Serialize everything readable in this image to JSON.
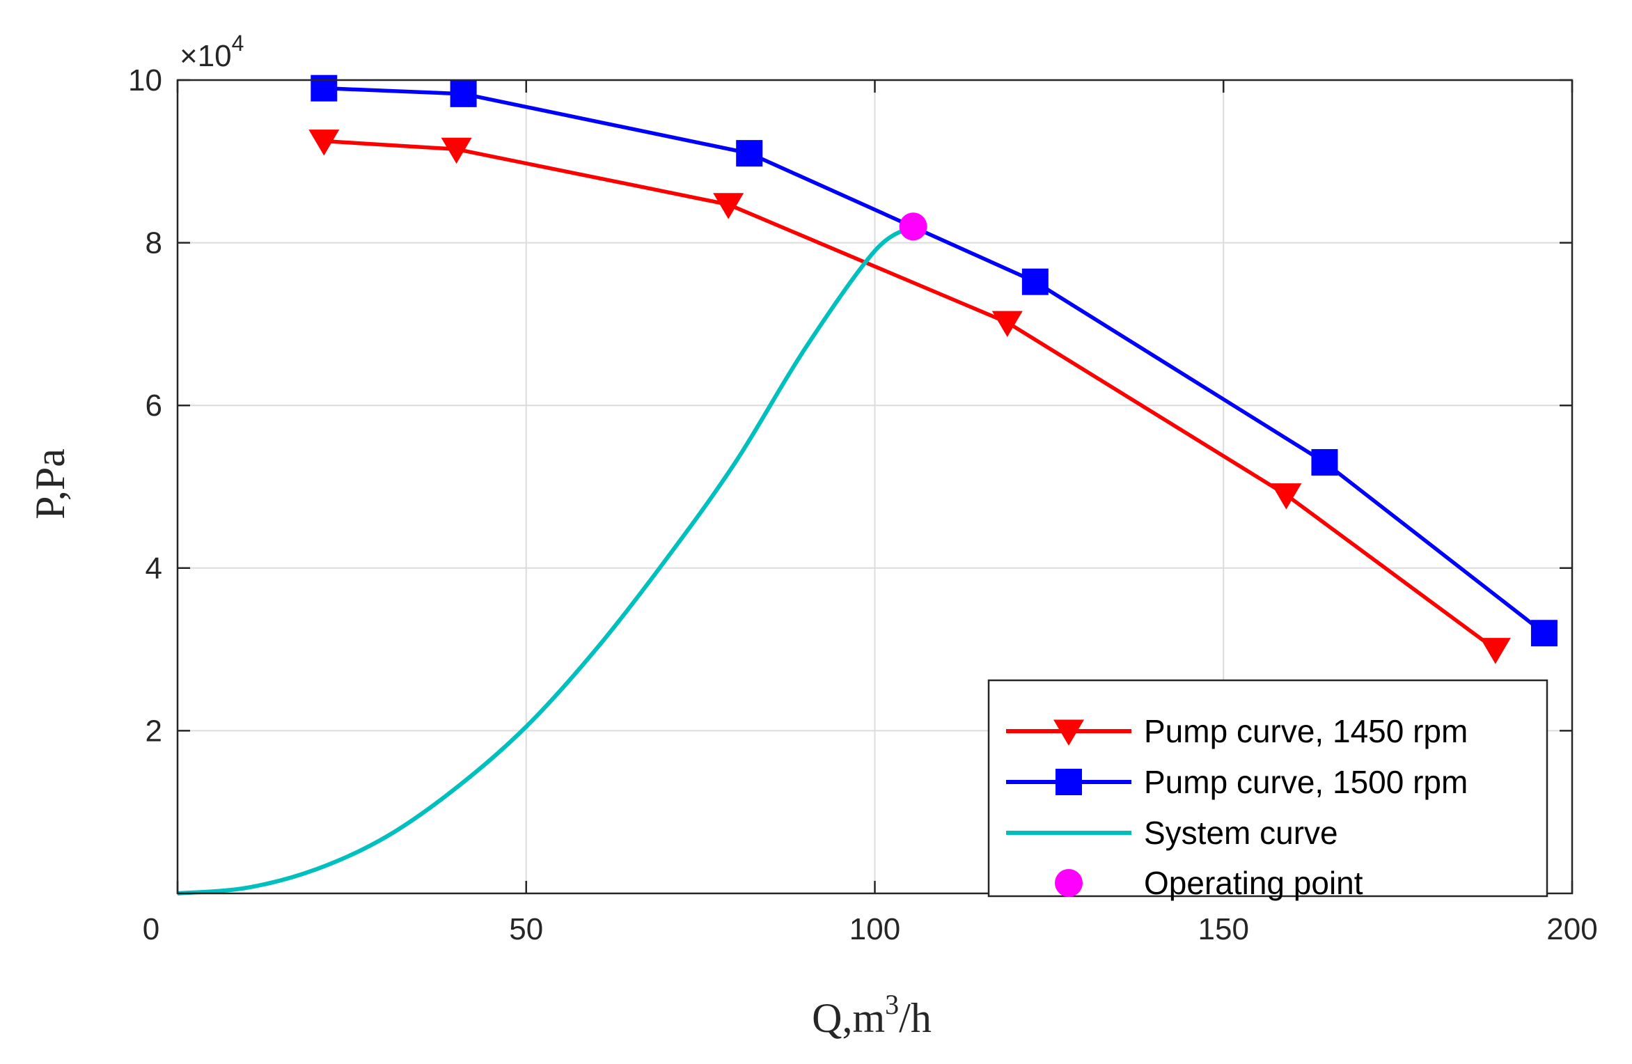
{
  "chart_data": {
    "type": "line",
    "xlabel": "Q,m",
    "xlabel_sup": "3",
    "xlabel_suffix": "/h",
    "ylabel": "P,Pa",
    "xlim": [
      0,
      200
    ],
    "ylim": [
      0,
      100000
    ],
    "x_ticks": [
      0,
      50,
      100,
      150,
      200
    ],
    "x_tick_labels": [
      "0",
      "50",
      "100",
      "150",
      "200"
    ],
    "y_ticks": [
      20000,
      40000,
      60000,
      80000,
      100000
    ],
    "y_tick_labels": [
      "2",
      "4",
      "6",
      "8",
      "10"
    ],
    "y_exponent": {
      "base": "×10",
      "power": "4"
    },
    "grid": true,
    "legend_position": "bottom-right",
    "series": [
      {
        "name": "Pump curve, 1450 rpm",
        "color": "#ff0000",
        "marker": "triangle-down",
        "x": [
          21,
          40,
          79,
          119,
          159,
          189
        ],
        "y": [
          92500,
          91500,
          84700,
          70200,
          49000,
          30000
        ]
      },
      {
        "name": "Pump curve, 1500 rpm",
        "color": "#0000ff",
        "marker": "square",
        "x": [
          21,
          41,
          82,
          123,
          164.5,
          196
        ],
        "y": [
          99000,
          98300,
          91000,
          75200,
          53000,
          32000
        ]
      },
      {
        "name": "System curve",
        "color": "#00bfbf",
        "marker": "none",
        "x": [
          0,
          10,
          20,
          30,
          40,
          50,
          60,
          70,
          80,
          90,
          100,
          105.5
        ],
        "y": [
          0,
          700,
          3000,
          7000,
          13000,
          20500,
          30000,
          41000,
          53000,
          67000,
          79000,
          82000
        ]
      },
      {
        "name": "Operating point",
        "color": "#ff00ff",
        "marker": "circle",
        "x": [
          105.5
        ],
        "y": [
          82000
        ]
      }
    ]
  }
}
